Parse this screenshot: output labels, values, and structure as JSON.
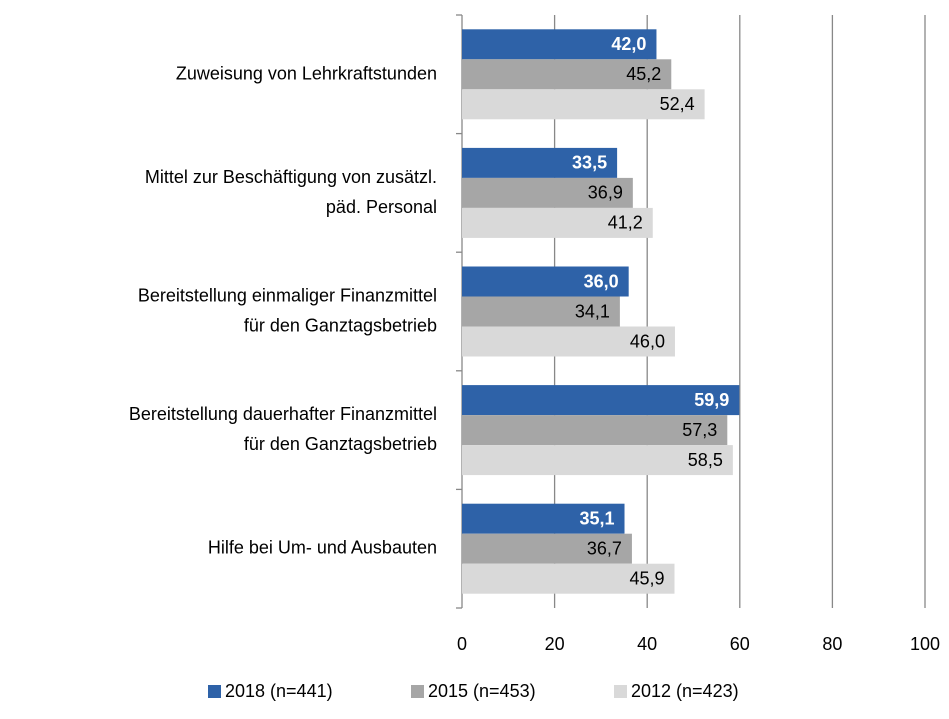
{
  "chart_data": {
    "type": "bar",
    "orientation": "horizontal",
    "categories": [
      "Zuweisung von Lehrkraftstunden",
      "Mittel zur Beschäftigung von zusätzl.\npäd. Personal",
      "Bereitstellung einmaliger Finanzmittel\nfür den Ganztagsbetrieb",
      "Bereitstellung dauerhafter Finanzmittel\nfür den Ganztagsbetrieb",
      "Hilfe bei Um- und Ausbauten"
    ],
    "series": [
      {
        "name": "2018 (n=441)",
        "color": "#2e62a8",
        "values": [
          42.0,
          33.5,
          36.0,
          59.9,
          35.1
        ],
        "value_labels": [
          "42,0",
          "33,5",
          "36,0",
          "59,9",
          "35,1"
        ]
      },
      {
        "name": "2015 (n=453)",
        "color": "#a6a6a6",
        "values": [
          45.2,
          36.9,
          34.1,
          57.3,
          36.7
        ],
        "value_labels": [
          "45,2",
          "36,9",
          "34,1",
          "57,3",
          "36,7"
        ]
      },
      {
        "name": "2012 (n=423)",
        "color": "#d9d9d9",
        "values": [
          52.4,
          41.2,
          46.0,
          58.5,
          45.9
        ],
        "value_labels": [
          "52,4",
          "41,2",
          "46,0",
          "58,5",
          "45,9"
        ]
      }
    ],
    "xlim": [
      0,
      100
    ],
    "xticks": [
      0,
      20,
      40,
      60,
      80,
      100
    ],
    "grid": true,
    "legend": "bottom"
  }
}
